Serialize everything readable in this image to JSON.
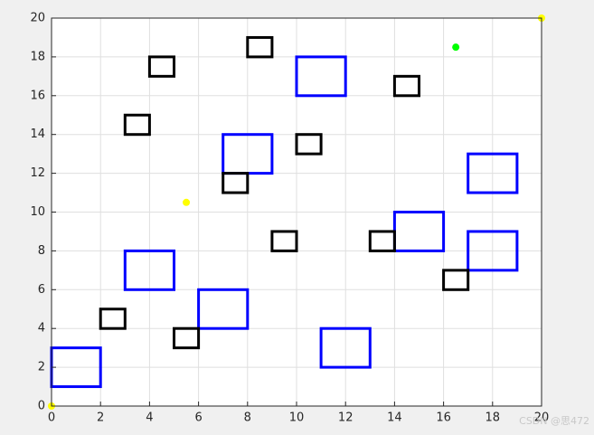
{
  "chart_data": {
    "type": "scatter",
    "xlim": [
      0,
      20
    ],
    "ylim": [
      0,
      20
    ],
    "xticks": [
      0,
      2,
      4,
      6,
      8,
      10,
      12,
      14,
      16,
      18,
      20
    ],
    "yticks": [
      0,
      2,
      4,
      6,
      8,
      10,
      12,
      14,
      16,
      18,
      20
    ],
    "grid": true,
    "rect_groups": [
      {
        "color": "#0000ff",
        "rects": [
          [
            0,
            1,
            2,
            2
          ],
          [
            3,
            6,
            2,
            2
          ],
          [
            6,
            4,
            2,
            2
          ],
          [
            7,
            12,
            2,
            2
          ],
          [
            10,
            16,
            2,
            2
          ],
          [
            11,
            2,
            2,
            2
          ],
          [
            14,
            8,
            2,
            2
          ],
          [
            17,
            7,
            2,
            2
          ],
          [
            17,
            11,
            2,
            2
          ]
        ]
      },
      {
        "color": "#000000",
        "rects": [
          [
            2,
            4,
            1,
            1
          ],
          [
            5,
            3,
            1,
            1
          ],
          [
            3,
            14,
            1,
            1
          ],
          [
            4,
            17,
            1,
            1
          ],
          [
            8,
            18,
            1,
            1
          ],
          [
            7,
            11,
            1,
            1
          ],
          [
            10,
            13,
            1,
            1
          ],
          [
            9,
            8,
            1,
            1
          ],
          [
            13,
            8,
            1,
            1
          ],
          [
            14,
            16,
            1,
            1
          ],
          [
            16,
            6,
            1,
            1
          ]
        ]
      }
    ],
    "points": [
      {
        "color": "#ffff00",
        "x": 5.5,
        "y": 10.5
      },
      {
        "color": "#00ff00",
        "x": 16.5,
        "y": 18.5
      },
      {
        "color": "#ffff00",
        "x": 0,
        "y": 0
      },
      {
        "color": "#ffff00",
        "x": 20,
        "y": 20
      }
    ]
  },
  "watermark": "CSDN @思472"
}
